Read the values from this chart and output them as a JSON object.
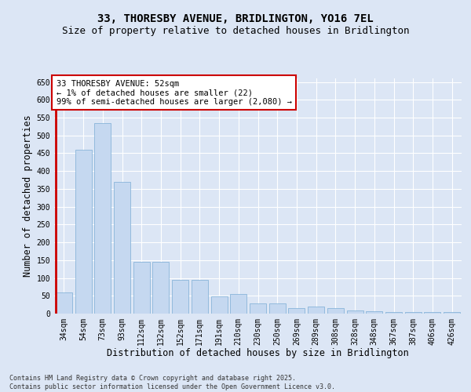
{
  "title_line1": "33, THORESBY AVENUE, BRIDLINGTON, YO16 7EL",
  "title_line2": "Size of property relative to detached houses in Bridlington",
  "xlabel": "Distribution of detached houses by size in Bridlington",
  "ylabel": "Number of detached properties",
  "categories": [
    "34sqm",
    "54sqm",
    "73sqm",
    "93sqm",
    "112sqm",
    "132sqm",
    "152sqm",
    "171sqm",
    "191sqm",
    "210sqm",
    "230sqm",
    "250sqm",
    "269sqm",
    "289sqm",
    "308sqm",
    "328sqm",
    "348sqm",
    "367sqm",
    "387sqm",
    "406sqm",
    "426sqm"
  ],
  "values": [
    60,
    460,
    535,
    370,
    145,
    145,
    95,
    95,
    48,
    55,
    28,
    28,
    15,
    20,
    15,
    8,
    6,
    4,
    4,
    4,
    4
  ],
  "bar_color": "#c5d8f0",
  "bar_edge_color": "#7aadd4",
  "highlight_color": "#cc0000",
  "annotation_box_text": "33 THORESBY AVENUE: 52sqm\n← 1% of detached houses are smaller (22)\n99% of semi-detached houses are larger (2,080) →",
  "annotation_box_color": "#cc0000",
  "ylim": [
    0,
    660
  ],
  "yticks": [
    0,
    50,
    100,
    150,
    200,
    250,
    300,
    350,
    400,
    450,
    500,
    550,
    600,
    650
  ],
  "bg_color": "#dce6f5",
  "plot_bg_color": "#dce6f5",
  "footnote": "Contains HM Land Registry data © Crown copyright and database right 2025.\nContains public sector information licensed under the Open Government Licence v3.0.",
  "title_fontsize": 10,
  "subtitle_fontsize": 9,
  "axis_label_fontsize": 8.5,
  "tick_fontsize": 7,
  "annotation_fontsize": 7.5,
  "footnote_fontsize": 6
}
